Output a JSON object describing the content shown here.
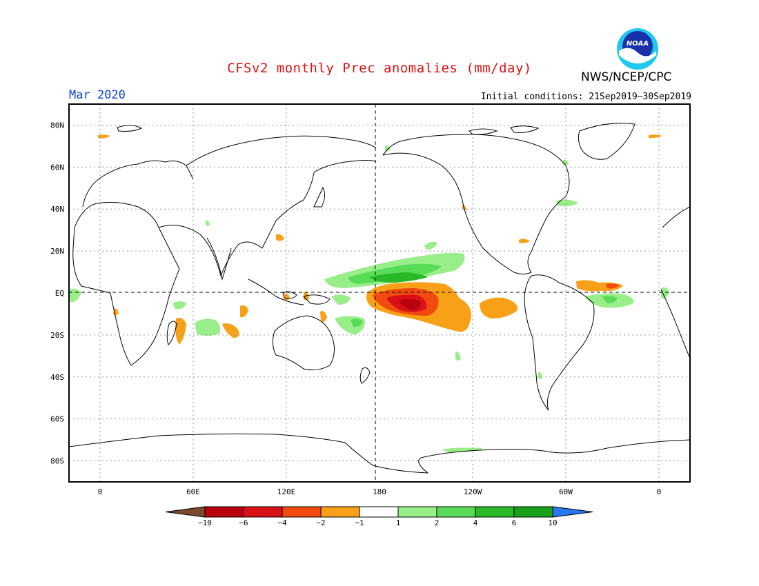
{
  "header": {
    "title": "CFSv2 monthly Prec anomalies (mm/day)",
    "agency": "NWS/NCEP/CPC",
    "logo_text": "NOAA",
    "valid_month": "Mar 2020",
    "initial_conditions": "Initial conditions: 21Sep2019–30Sep2019"
  },
  "map": {
    "lat_labels": [
      "80N",
      "60N",
      "40N",
      "20N",
      "EQ",
      "20S",
      "40S",
      "60S",
      "80S"
    ],
    "lon_labels": [
      "0",
      "60E",
      "120E",
      "180",
      "120W",
      "60W",
      "0"
    ],
    "lat_values": [
      80,
      60,
      40,
      20,
      0,
      -20,
      -40,
      -60,
      -80
    ],
    "lon_values": [
      0,
      60,
      120,
      180,
      240,
      300,
      360
    ],
    "lon_range": [
      -20,
      380
    ],
    "lat_range": [
      -90,
      90
    ]
  },
  "colorbar": {
    "labels": [
      "−10",
      "−6",
      "−4",
      "−2",
      "−1",
      "1",
      "2",
      "4",
      "6",
      "10"
    ],
    "colors": {
      "lt_-10": "#7a4a2a",
      "-10_-6": "#b8000f",
      "-6_-4": "#d81018",
      "-4_-2": "#f04a10",
      "-2_-1": "#f8a018",
      "-1_1": "#ffffff",
      "1_2": "#98ee88",
      "2_4": "#58dc58",
      "4_6": "#28b828",
      "6_10": "#18a018",
      "gt_10": "#2878f0"
    }
  }
}
